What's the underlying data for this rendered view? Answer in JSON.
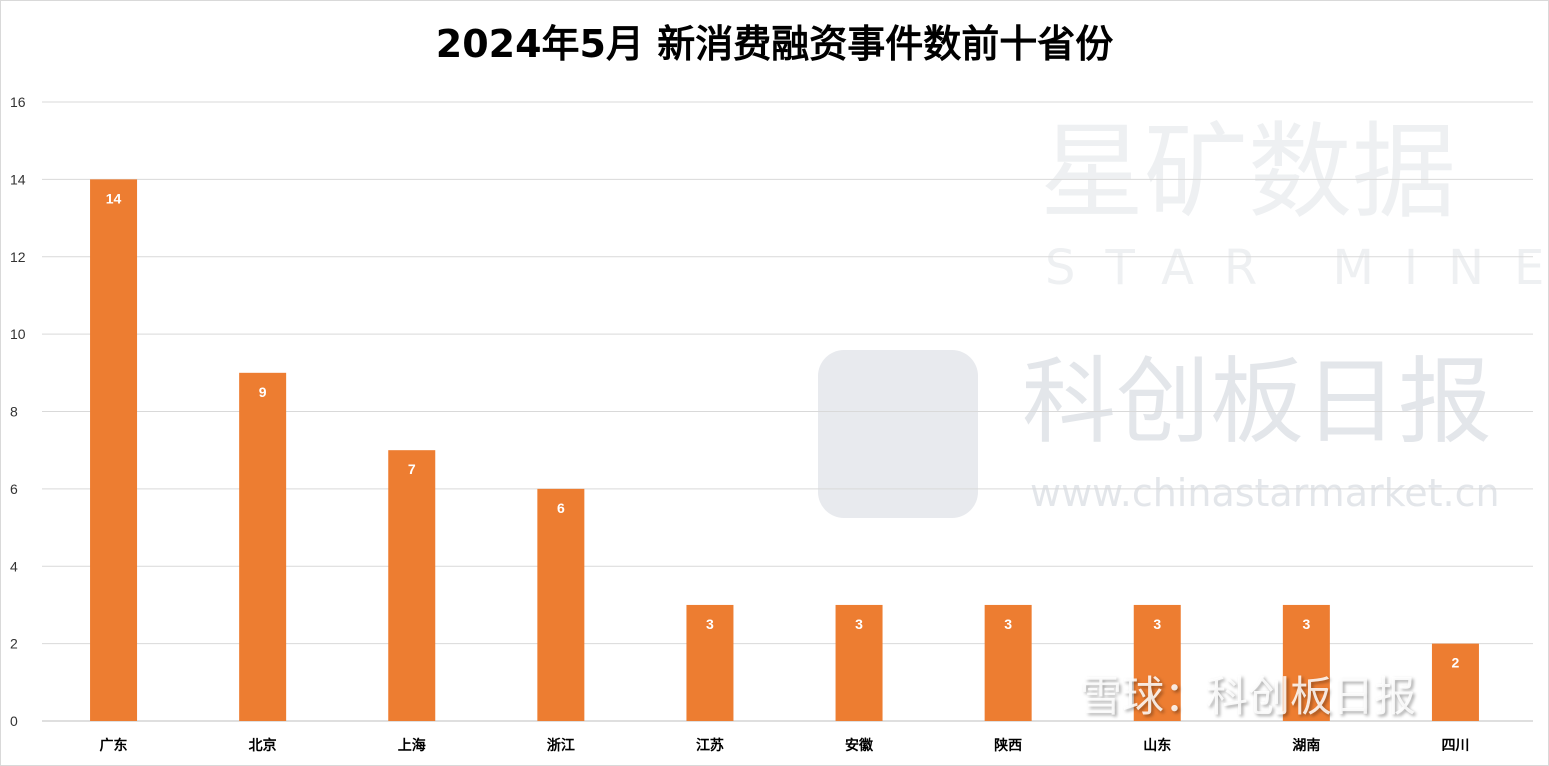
{
  "chart_data": {
    "type": "bar",
    "title": "2024年5月 新消费融资事件数前十省份",
    "categories": [
      "广东",
      "北京",
      "上海",
      "浙江",
      "江苏",
      "安徽",
      "陕西",
      "山东",
      "湖南",
      "四川"
    ],
    "values": [
      14,
      9,
      7,
      6,
      3,
      3,
      3,
      3,
      3,
      2
    ],
    "xlabel": "",
    "ylabel": "",
    "ylim": [
      0,
      16
    ],
    "yticks": [
      0,
      2,
      4,
      6,
      8,
      10,
      12,
      14,
      16
    ],
    "grid": true,
    "bar_color": "#ED7D31",
    "data_labels": true
  },
  "watermarks": {
    "brand_cn": "星矿数据",
    "brand_en": "STAR MINE",
    "publisher": "科创板日报",
    "url": "www.chinastarmarket.cn",
    "xueqiu": "雪球：科创板日报"
  }
}
